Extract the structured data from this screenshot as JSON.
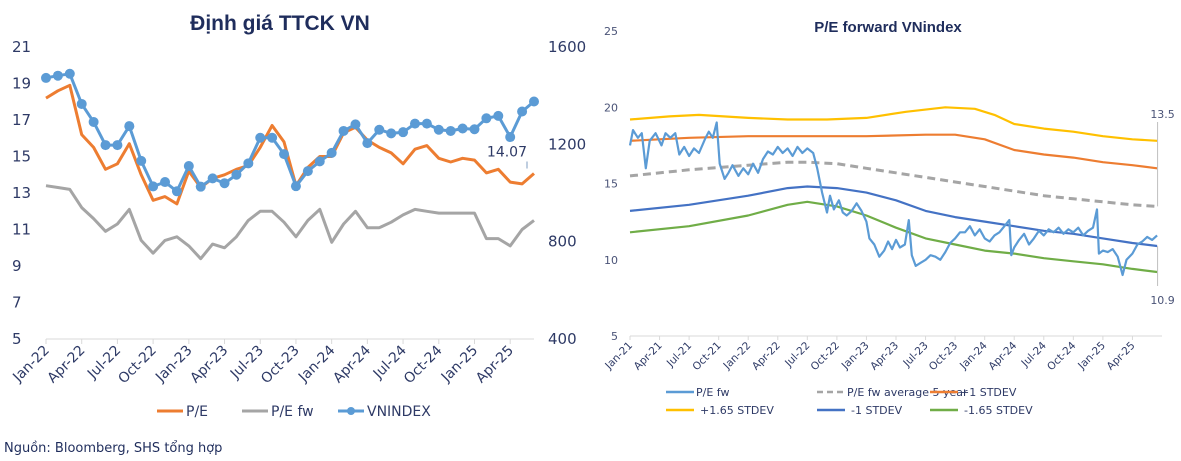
{
  "source_note": "Nguồn: Bloomberg, SHS tổng hợp",
  "chart_data": [
    {
      "type": "line",
      "title": "Định giá TTCK VN",
      "xlabel": "",
      "ylabel": "",
      "y_left": {
        "range": [
          5,
          21
        ],
        "ticks": [
          "5",
          "7",
          "9",
          "11",
          "13",
          "15",
          "17",
          "19",
          "21"
        ]
      },
      "y_right": {
        "range": [
          400,
          1600
        ],
        "ticks": [
          "400",
          "800",
          "1200",
          "1600"
        ]
      },
      "x_tick_labels": [
        "Jan-22",
        "Apr-22",
        "Jul-22",
        "Oct-22",
        "Jan-23",
        "Apr-23",
        "Jul-23",
        "Oct-23",
        "Jan-24",
        "Apr-24",
        "Jul-24",
        "Oct-24",
        "Jan-25",
        "Apr-25"
      ],
      "x": [
        "Jan-22",
        "Feb-22",
        "Mar-22",
        "Apr-22",
        "May-22",
        "Jun-22",
        "Jul-22",
        "Aug-22",
        "Sep-22",
        "Oct-22",
        "Nov-22",
        "Dec-22",
        "Jan-23",
        "Feb-23",
        "Mar-23",
        "Apr-23",
        "May-23",
        "Jun-23",
        "Jul-23",
        "Aug-23",
        "Sep-23",
        "Oct-23",
        "Nov-23",
        "Dec-23",
        "Jan-24",
        "Feb-24",
        "Mar-24",
        "Apr-24",
        "May-24",
        "Jun-24",
        "Jul-24",
        "Aug-24",
        "Sep-24",
        "Oct-24",
        "Nov-24",
        "Dec-24",
        "Jan-25",
        "Feb-25",
        "Mar-25",
        "Apr-25",
        "May-25",
        "Jun-25"
      ],
      "series": [
        {
          "name": "P/E",
          "axis": "left",
          "color": "#ed7d31",
          "markers": false,
          "values": [
            18.2,
            18.6,
            18.9,
            16.2,
            15.5,
            14.3,
            14.6,
            15.7,
            14.0,
            12.6,
            12.8,
            12.4,
            14.2,
            13.3,
            13.8,
            14.0,
            14.3,
            14.5,
            15.5,
            16.7,
            15.8,
            13.4,
            14.4,
            15.0,
            15.0,
            16.3,
            16.6,
            15.9,
            15.5,
            15.2,
            14.6,
            15.4,
            15.6,
            14.9,
            14.7,
            14.9,
            14.8,
            14.1,
            14.3,
            13.6,
            13.5,
            14.07
          ]
        },
        {
          "name": "P/E fw",
          "axis": "left",
          "color": "#a5a5a5",
          "markers": false,
          "values": [
            13.4,
            13.3,
            13.2,
            12.2,
            11.6,
            10.9,
            11.3,
            12.1,
            10.4,
            9.7,
            10.4,
            10.6,
            10.1,
            9.4,
            10.2,
            10.0,
            10.6,
            11.5,
            12.0,
            12.0,
            11.4,
            10.6,
            11.5,
            12.1,
            10.3,
            11.3,
            12.0,
            11.1,
            11.1,
            11.4,
            11.8,
            12.1,
            12.0,
            11.9,
            11.9,
            11.9,
            11.9,
            10.5,
            10.5,
            10.1,
            11.0,
            11.5
          ]
        },
        {
          "name": "VNINDEX",
          "axis": "right",
          "color": "#5b9bd5",
          "markers": true,
          "values": [
            1473,
            1482,
            1490,
            1366,
            1292,
            1197,
            1197,
            1275,
            1132,
            1027,
            1045,
            1007,
            1111,
            1026,
            1060,
            1040,
            1075,
            1122,
            1227,
            1227,
            1160,
            1028,
            1090,
            1130,
            1165,
            1255,
            1282,
            1205,
            1260,
            1245,
            1250,
            1285,
            1285,
            1260,
            1255,
            1265,
            1262,
            1307,
            1317,
            1230,
            1335,
            1376
          ]
        }
      ],
      "annotations": [
        {
          "text": "14.07",
          "series": "P/E",
          "at": "Jun-25"
        }
      ],
      "legend": {
        "placement": "bottom",
        "entries": [
          "P/E",
          "P/E fw",
          "VNINDEX"
        ]
      },
      "grid": false
    },
    {
      "type": "line",
      "title": "P/E forward VNindex",
      "xlabel": "",
      "ylabel": "",
      "y": {
        "range": [
          5,
          25
        ],
        "ticks": [
          "5",
          "10",
          "15",
          "20",
          "25"
        ]
      },
      "x_tick_labels": [
        "Jan-21",
        "Apr-21",
        "Jul-21",
        "Oct-21",
        "Jan-22",
        "Apr-22",
        "Jul-22",
        "Oct-22",
        "Jan-23",
        "Apr-23",
        "Jul-23",
        "Oct-23",
        "Jan-24",
        "Apr-24",
        "Jul-24",
        "Oct-24",
        "Jan-25",
        "Apr-25"
      ],
      "x_range_months": [
        0,
        54
      ],
      "series": [
        {
          "name": "P/E fw",
          "color": "#5b9bd5",
          "dash": false,
          "points": [
            [
              0,
              17.5
            ],
            [
              0.3,
              18.5
            ],
            [
              0.8,
              18.0
            ],
            [
              1.2,
              18.3
            ],
            [
              1.6,
              16.0
            ],
            [
              2,
              17.8
            ],
            [
              2.6,
              18.3
            ],
            [
              3.2,
              17.5
            ],
            [
              3.6,
              18.3
            ],
            [
              4.1,
              18.0
            ],
            [
              4.6,
              18.3
            ],
            [
              5,
              16.9
            ],
            [
              5.5,
              17.4
            ],
            [
              6,
              16.8
            ],
            [
              6.5,
              17.3
            ],
            [
              7,
              17.0
            ],
            [
              7.6,
              17.9
            ],
            [
              8,
              18.4
            ],
            [
              8.4,
              18.0
            ],
            [
              8.8,
              19.0
            ],
            [
              9.1,
              16.3
            ],
            [
              9.6,
              15.3
            ],
            [
              10,
              15.7
            ],
            [
              10.4,
              16.2
            ],
            [
              11,
              15.5
            ],
            [
              11.5,
              16.0
            ],
            [
              12,
              15.6
            ],
            [
              12.5,
              16.3
            ],
            [
              13,
              15.7
            ],
            [
              13.5,
              16.6
            ],
            [
              14,
              17.1
            ],
            [
              14.5,
              16.9
            ],
            [
              15,
              17.4
            ],
            [
              15.5,
              17.0
            ],
            [
              16,
              17.3
            ],
            [
              16.5,
              16.8
            ],
            [
              17,
              17.4
            ],
            [
              17.5,
              17.0
            ],
            [
              18,
              17.3
            ],
            [
              18.6,
              17.0
            ],
            [
              19,
              16.0
            ],
            [
              19.5,
              14.4
            ],
            [
              20,
              13.1
            ],
            [
              20.3,
              14.2
            ],
            [
              20.7,
              13.3
            ],
            [
              21.2,
              13.9
            ],
            [
              21.6,
              13.1
            ],
            [
              22,
              12.9
            ],
            [
              22.5,
              13.2
            ],
            [
              23,
              13.7
            ],
            [
              23.5,
              13.2
            ],
            [
              24,
              12.5
            ],
            [
              24.3,
              11.4
            ],
            [
              24.8,
              11.0
            ],
            [
              25.3,
              10.2
            ],
            [
              25.8,
              10.6
            ],
            [
              26.2,
              11.2
            ],
            [
              26.6,
              10.7
            ],
            [
              27,
              11.3
            ],
            [
              27.4,
              10.8
            ],
            [
              27.9,
              11.0
            ],
            [
              28.3,
              12.6
            ],
            [
              28.6,
              10.3
            ],
            [
              29,
              9.6
            ],
            [
              29.5,
              9.8
            ],
            [
              30,
              10.0
            ],
            [
              30.5,
              10.3
            ],
            [
              31,
              10.2
            ],
            [
              31.5,
              10.0
            ],
            [
              32,
              10.5
            ],
            [
              32.5,
              11.1
            ],
            [
              33,
              11.4
            ],
            [
              33.5,
              11.8
            ],
            [
              34,
              11.8
            ],
            [
              34.5,
              12.2
            ],
            [
              35,
              11.6
            ],
            [
              35.5,
              12.0
            ],
            [
              36,
              11.4
            ],
            [
              36.5,
              11.2
            ],
            [
              37,
              11.6
            ],
            [
              37.5,
              11.8
            ],
            [
              38,
              12.2
            ],
            [
              38.5,
              12.6
            ],
            [
              38.7,
              10.3
            ],
            [
              39,
              10.8
            ],
            [
              39.5,
              11.3
            ],
            [
              40,
              11.7
            ],
            [
              40.5,
              11.0
            ],
            [
              41,
              11.4
            ],
            [
              41.5,
              11.9
            ],
            [
              42,
              11.6
            ],
            [
              42.5,
              12.0
            ],
            [
              43,
              11.8
            ],
            [
              43.5,
              12.1
            ],
            [
              44,
              11.7
            ],
            [
              44.5,
              12.0
            ],
            [
              45,
              11.8
            ],
            [
              45.5,
              12.1
            ],
            [
              46,
              11.6
            ],
            [
              46.5,
              11.9
            ],
            [
              47,
              12.1
            ],
            [
              47.4,
              13.3
            ],
            [
              47.6,
              10.4
            ],
            [
              48,
              10.6
            ],
            [
              48.5,
              10.5
            ],
            [
              49,
              10.7
            ],
            [
              49.5,
              10.2
            ],
            [
              50,
              9.0
            ],
            [
              50.4,
              10.0
            ],
            [
              51,
              10.4
            ],
            [
              51.5,
              11.0
            ],
            [
              52,
              11.2
            ],
            [
              52.5,
              11.5
            ],
            [
              53,
              11.3
            ],
            [
              53.5,
              11.6
            ]
          ]
        },
        {
          "name": "P/E fw average 5 year",
          "color": "#a5a5a5",
          "dash": true,
          "points": [
            [
              0,
              15.5
            ],
            [
              6,
              15.9
            ],
            [
              12,
              16.2
            ],
            [
              16,
              16.4
            ],
            [
              18,
              16.4
            ],
            [
              21,
              16.3
            ],
            [
              24,
              16.0
            ],
            [
              30,
              15.4
            ],
            [
              33,
              15.1
            ],
            [
              36,
              14.8
            ],
            [
              39,
              14.5
            ],
            [
              42,
              14.2
            ],
            [
              45,
              14.0
            ],
            [
              48,
              13.8
            ],
            [
              51,
              13.6
            ],
            [
              53.5,
              13.5
            ]
          ]
        },
        {
          "name": "+1 STDEV",
          "color": "#ed7d31",
          "dash": false,
          "points": [
            [
              0,
              17.8
            ],
            [
              6,
              18.0
            ],
            [
              12,
              18.1
            ],
            [
              18,
              18.1
            ],
            [
              24,
              18.1
            ],
            [
              30,
              18.2
            ],
            [
              33,
              18.2
            ],
            [
              36,
              17.9
            ],
            [
              39,
              17.2
            ],
            [
              42,
              16.9
            ],
            [
              45,
              16.7
            ],
            [
              48,
              16.4
            ],
            [
              51,
              16.2
            ],
            [
              53.5,
              16.0
            ]
          ]
        },
        {
          "name": "+1.65 STDEV",
          "color": "#ffc000",
          "dash": false,
          "points": [
            [
              0,
              19.2
            ],
            [
              4,
              19.4
            ],
            [
              7,
              19.5
            ],
            [
              12,
              19.3
            ],
            [
              16,
              19.2
            ],
            [
              20,
              19.2
            ],
            [
              24,
              19.3
            ],
            [
              28,
              19.7
            ],
            [
              32,
              20.0
            ],
            [
              35,
              19.9
            ],
            [
              37,
              19.5
            ],
            [
              39,
              18.9
            ],
            [
              42,
              18.6
            ],
            [
              45,
              18.4
            ],
            [
              48,
              18.1
            ],
            [
              51,
              17.9
            ],
            [
              53.5,
              17.8
            ]
          ]
        },
        {
          "name": "-1 STDEV",
          "color": "#4472c4",
          "dash": false,
          "points": [
            [
              0,
              13.2
            ],
            [
              6,
              13.6
            ],
            [
              12,
              14.2
            ],
            [
              16,
              14.7
            ],
            [
              18,
              14.8
            ],
            [
              21,
              14.7
            ],
            [
              24,
              14.4
            ],
            [
              27,
              13.9
            ],
            [
              30,
              13.2
            ],
            [
              33,
              12.8
            ],
            [
              36,
              12.5
            ],
            [
              39,
              12.2
            ],
            [
              42,
              11.9
            ],
            [
              45,
              11.7
            ],
            [
              48,
              11.4
            ],
            [
              51,
              11.1
            ],
            [
              53.5,
              10.9
            ]
          ]
        },
        {
          "name": "-1.65 STDEV",
          "color": "#70ad47",
          "dash": false,
          "points": [
            [
              0,
              11.8
            ],
            [
              6,
              12.2
            ],
            [
              12,
              12.9
            ],
            [
              16,
              13.6
            ],
            [
              18,
              13.8
            ],
            [
              21,
              13.5
            ],
            [
              24,
              12.9
            ],
            [
              27,
              12.1
            ],
            [
              30,
              11.4
            ],
            [
              33,
              11.0
            ],
            [
              36,
              10.6
            ],
            [
              39,
              10.4
            ],
            [
              42,
              10.1
            ],
            [
              45,
              9.9
            ],
            [
              48,
              9.7
            ],
            [
              51,
              9.4
            ],
            [
              53.5,
              9.2
            ]
          ]
        }
      ],
      "annotations": [
        {
          "text": "13.5",
          "position": "top-right"
        },
        {
          "text": "10.9",
          "position": "bottom-right"
        }
      ],
      "legend": {
        "placement": "bottom",
        "entries": [
          "P/E fw",
          "P/E fw average 5 year",
          "+1 STDEV",
          "+1.65 STDEV",
          "-1 STDEV",
          "-1.65 STDEV"
        ]
      },
      "grid": false
    }
  ]
}
